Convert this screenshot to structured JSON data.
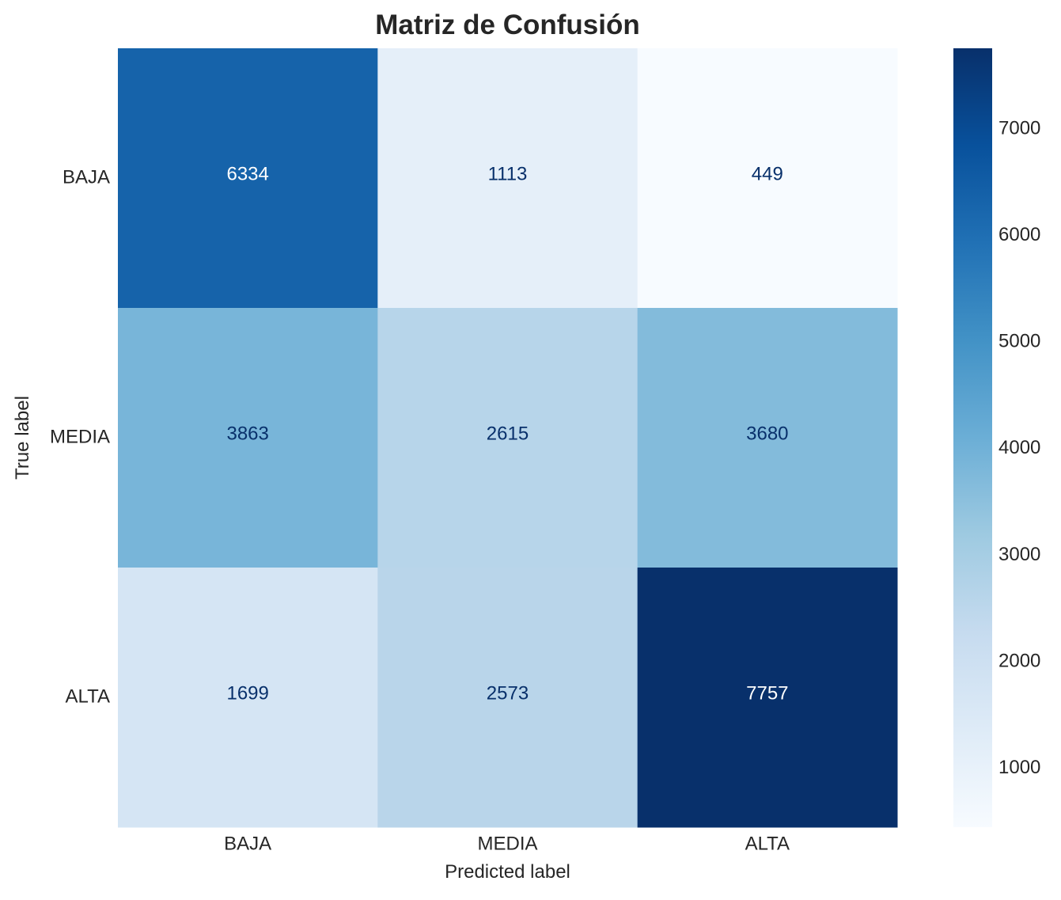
{
  "chart_data": {
    "type": "heatmap",
    "title": "Matriz de Confusión",
    "xlabel": "Predicted label",
    "ylabel": "True label",
    "x_categories": [
      "BAJA",
      "MEDIA",
      "ALTA"
    ],
    "y_categories": [
      "BAJA",
      "MEDIA",
      "ALTA"
    ],
    "values": [
      [
        6334,
        1113,
        449
      ],
      [
        3863,
        2615,
        3680
      ],
      [
        1699,
        2573,
        7757
      ]
    ],
    "colormap": "Blues",
    "color_range": [
      449,
      7757
    ],
    "colorbar_ticks": [
      1000,
      2000,
      3000,
      4000,
      5000,
      6000,
      7000
    ],
    "colors": {
      "min": "#f7fbff",
      "max": "#08306b",
      "text_dark": "#08306b",
      "text_light": "#ffffff"
    }
  }
}
